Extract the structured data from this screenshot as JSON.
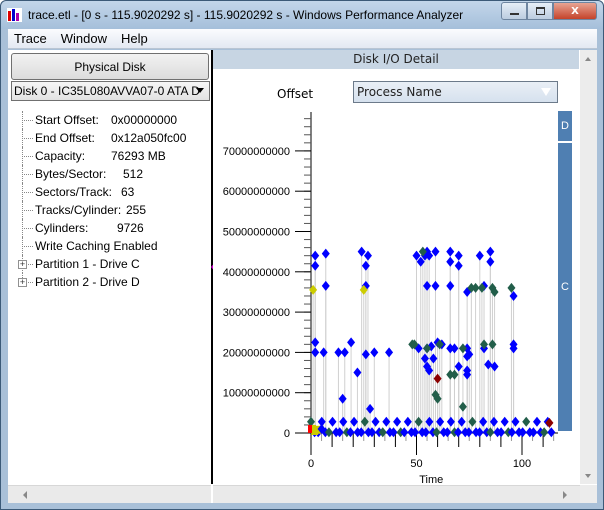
{
  "window": {
    "title": "trace.etl - [0 s - 115.9020292 s] - 115.9020292 s - Windows Performance Analyzer",
    "buttons": {
      "minimize": "—",
      "maximize": "□",
      "close": "X"
    }
  },
  "menubar": {
    "items": [
      {
        "label": "Trace",
        "accel": "T"
      },
      {
        "label": "Window",
        "accel": "W"
      },
      {
        "label": "Help",
        "accel": "H"
      }
    ]
  },
  "left_pane": {
    "button_label": "Physical Disk",
    "disk_select": "Disk 0 - IC35L080AVVA07-0 ATA D",
    "properties": [
      {
        "label": "Start Offset:",
        "value": "0x00000000"
      },
      {
        "label": "End Offset:",
        "value": "0x12a050fc00"
      },
      {
        "label": "Capacity:",
        "value": "76293 MB"
      },
      {
        "label": "Bytes/Sector:",
        "value": "512"
      },
      {
        "label": "Sectors/Track:",
        "value": "63"
      },
      {
        "label": "Tracks/Cylinder:",
        "value": "255"
      },
      {
        "label": "Cylinders:",
        "value": "9726"
      },
      {
        "label": "Write Caching Enabled",
        "value": ""
      }
    ],
    "partitions": [
      {
        "label": "Partition 1 - Drive C"
      },
      {
        "label": "Partition 2 - Drive D"
      }
    ]
  },
  "right_pane": {
    "header": "Disk I/O Detail",
    "y_axis_title": "Offset",
    "group_by_select": "Process Name",
    "partition_legend": [
      {
        "label": "D",
        "color": "#4f7fb2"
      },
      {
        "label": "C",
        "color": "#4f7fb2"
      }
    ]
  },
  "chart_data": {
    "type": "scatter",
    "title": "Disk I/O Detail",
    "xlabel": "Time",
    "ylabel": "Offset",
    "x_ticks": [
      "0",
      "50",
      "100"
    ],
    "y_ticks": [
      "0",
      "10000000000",
      "20000000000",
      "30000000000",
      "40000000000",
      "50000000000",
      "60000000000",
      "70000000000"
    ],
    "xlim": [
      0,
      115.9
    ],
    "ylim": [
      0,
      78000000000
    ],
    "colors": {
      "blue": "#0000ff",
      "green": "#225e4a",
      "yellow": "#cccc00",
      "darkred": "#8b0000",
      "red": "#ff0000",
      "stem": "#d0d0d0"
    },
    "series": [
      {
        "name": "blue",
        "color": "#0000ff",
        "points": [
          [
            2,
            44
          ],
          [
            2,
            41.5
          ],
          [
            5,
            1
          ],
          [
            7,
            44.5
          ],
          [
            7,
            36.5
          ],
          [
            2,
            22.5
          ],
          [
            2,
            20
          ],
          [
            6,
            20
          ],
          [
            16,
            20
          ],
          [
            19,
            22.5
          ],
          [
            24,
            45
          ],
          [
            26,
            41.5
          ],
          [
            27,
            44
          ],
          [
            26,
            36.5
          ],
          [
            13,
            20
          ],
          [
            22,
            15
          ],
          [
            15,
            8.5
          ],
          [
            26,
            19.5
          ],
          [
            30,
            20
          ],
          [
            28,
            6
          ],
          [
            37,
            20
          ],
          [
            50,
            44
          ],
          [
            52,
            42.5
          ],
          [
            54,
            44
          ],
          [
            56,
            44
          ],
          [
            55,
            45
          ],
          [
            59,
            45
          ],
          [
            55,
            36.5
          ],
          [
            59,
            36.5
          ],
          [
            51,
            21
          ],
          [
            55,
            21
          ],
          [
            57,
            21.5
          ],
          [
            60,
            22.5
          ],
          [
            58,
            18.5
          ],
          [
            55,
            16.5
          ],
          [
            54,
            18.5
          ],
          [
            56,
            15.5
          ],
          [
            62,
            22
          ],
          [
            66,
            45
          ],
          [
            66,
            42.5
          ],
          [
            66,
            36.5
          ],
          [
            66,
            21
          ],
          [
            68,
            21
          ],
          [
            70,
            44
          ],
          [
            70,
            41.5
          ],
          [
            70,
            16.5
          ],
          [
            74,
            35
          ],
          [
            74,
            21
          ],
          [
            74,
            19
          ],
          [
            75,
            19.5
          ],
          [
            74,
            15.5
          ],
          [
            74,
            14.5
          ],
          [
            80,
            44
          ],
          [
            82,
            36.5
          ],
          [
            82,
            21
          ],
          [
            85,
            45
          ],
          [
            85,
            42.5
          ],
          [
            84,
            17
          ],
          [
            87,
            16.5
          ],
          [
            96,
            34
          ],
          [
            96,
            22
          ],
          [
            96,
            21
          ]
        ]
      },
      {
        "name": "green",
        "color": "#225e4a",
        "points": [
          [
            53,
            45
          ],
          [
            48,
            22
          ],
          [
            49,
            22
          ],
          [
            55,
            21
          ],
          [
            61,
            22
          ],
          [
            72,
            21
          ],
          [
            72,
            6.5
          ],
          [
            60,
            8.5
          ],
          [
            59,
            9.5
          ],
          [
            76,
            36
          ],
          [
            78,
            36
          ],
          [
            81,
            36
          ],
          [
            86,
            36
          ],
          [
            87,
            35
          ],
          [
            86,
            22
          ],
          [
            95,
            36
          ],
          [
            82,
            22
          ],
          [
            66,
            14.5
          ],
          [
            68,
            14.5
          ]
        ]
      },
      {
        "name": "yellow",
        "color": "#cccc00",
        "points": [
          [
            1,
            35.5
          ],
          [
            25,
            35.5
          ]
        ]
      },
      {
        "name": "darkred",
        "color": "#8b0000",
        "points": [
          [
            60,
            13.5
          ],
          [
            113,
            2.5
          ]
        ]
      }
    ],
    "y_unit_note": "offset values in billions (x1e9)",
    "grid": false,
    "legend_position": "right"
  }
}
